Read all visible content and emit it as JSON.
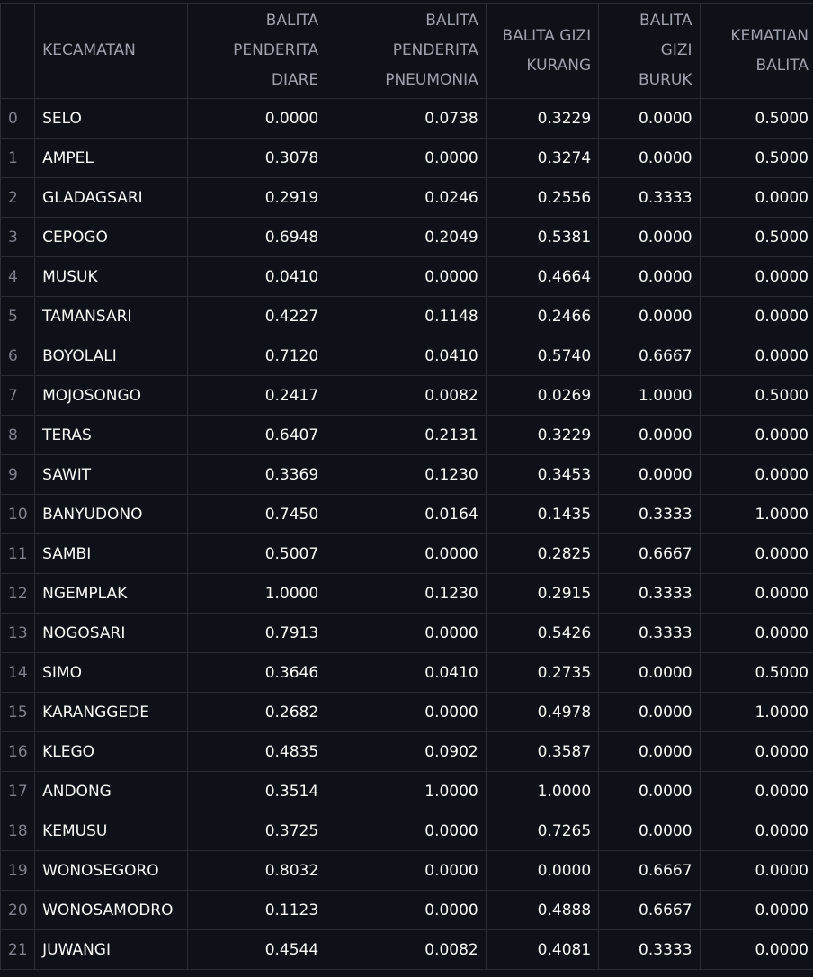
{
  "table": {
    "columns": [
      [
        "KECAMATAN"
      ],
      [
        "BALITA",
        "PENDERITA",
        "DIARE"
      ],
      [
        "BALITA",
        "PENDERITA",
        "PNEUMONIA"
      ],
      [
        "BALITA GIZI",
        "KURANG"
      ],
      [
        "BALITA",
        "GIZI",
        "BURUK"
      ],
      [
        "KEMATIAN",
        "BALITA"
      ]
    ],
    "rows": [
      [
        "0",
        "SELO",
        "0.0000",
        "0.0738",
        "0.3229",
        "0.0000",
        "0.5000"
      ],
      [
        "1",
        "AMPEL",
        "0.3078",
        "0.0000",
        "0.3274",
        "0.0000",
        "0.5000"
      ],
      [
        "2",
        "GLADAGSARI",
        "0.2919",
        "0.0246",
        "0.2556",
        "0.3333",
        "0.0000"
      ],
      [
        "3",
        "CEPOGO",
        "0.6948",
        "0.2049",
        "0.5381",
        "0.0000",
        "0.5000"
      ],
      [
        "4",
        "MUSUK",
        "0.0410",
        "0.0000",
        "0.4664",
        "0.0000",
        "0.0000"
      ],
      [
        "5",
        "TAMANSARI",
        "0.4227",
        "0.1148",
        "0.2466",
        "0.0000",
        "0.0000"
      ],
      [
        "6",
        "BOYOLALI",
        "0.7120",
        "0.0410",
        "0.5740",
        "0.6667",
        "0.0000"
      ],
      [
        "7",
        "MOJOSONGO",
        "0.2417",
        "0.0082",
        "0.0269",
        "1.0000",
        "0.5000"
      ],
      [
        "8",
        "TERAS",
        "0.6407",
        "0.2131",
        "0.3229",
        "0.0000",
        "0.0000"
      ],
      [
        "9",
        "SAWIT",
        "0.3369",
        "0.1230",
        "0.3453",
        "0.0000",
        "0.0000"
      ],
      [
        "10",
        "BANYUDONO",
        "0.7450",
        "0.0164",
        "0.1435",
        "0.3333",
        "1.0000"
      ],
      [
        "11",
        "SAMBI",
        "0.5007",
        "0.0000",
        "0.2825",
        "0.6667",
        "0.0000"
      ],
      [
        "12",
        "NGEMPLAK",
        "1.0000",
        "0.1230",
        "0.2915",
        "0.3333",
        "0.0000"
      ],
      [
        "13",
        "NOGOSARI",
        "0.7913",
        "0.0000",
        "0.5426",
        "0.3333",
        "0.0000"
      ],
      [
        "14",
        "SIMO",
        "0.3646",
        "0.0410",
        "0.2735",
        "0.0000",
        "0.5000"
      ],
      [
        "15",
        "KARANGGEDE",
        "0.2682",
        "0.0000",
        "0.4978",
        "0.0000",
        "1.0000"
      ],
      [
        "16",
        "KLEGO",
        "0.4835",
        "0.0902",
        "0.3587",
        "0.0000",
        "0.0000"
      ],
      [
        "17",
        "ANDONG",
        "0.3514",
        "1.0000",
        "1.0000",
        "0.0000",
        "0.0000"
      ],
      [
        "18",
        "KEMUSU",
        "0.3725",
        "0.0000",
        "0.7265",
        "0.0000",
        "0.0000"
      ],
      [
        "19",
        "WONOSEGORO",
        "0.8032",
        "0.0000",
        "0.0000",
        "0.6667",
        "0.0000"
      ],
      [
        "20",
        "WONOSAMODRO",
        "0.1123",
        "0.0000",
        "0.4888",
        "0.6667",
        "0.0000"
      ],
      [
        "21",
        "JUWANGI",
        "0.4544",
        "0.0082",
        "0.4081",
        "0.3333",
        "0.0000"
      ]
    ]
  },
  "colors": {
    "background": "#0e1117",
    "grid": "#2a2d36",
    "header_text": "#9ea2ad",
    "index_text": "#7d818c",
    "cell_text": "#fafafa"
  }
}
